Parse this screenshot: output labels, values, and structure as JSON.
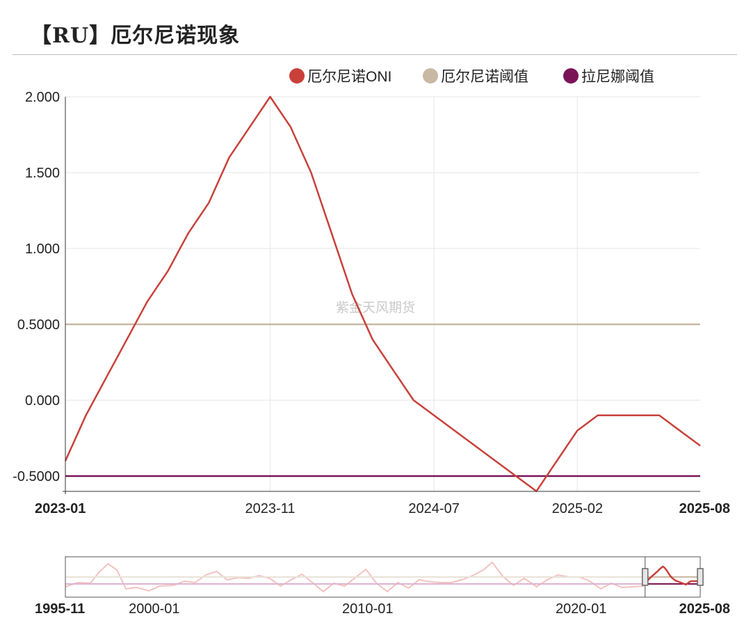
{
  "page": {
    "title": "【RU】厄尔尼诺现象"
  },
  "watermark": "紫金天风期货",
  "chart_data": {
    "type": "line",
    "title": "【RU】厄尔尼诺现象",
    "xlabel": "",
    "ylabel": "",
    "ylim": [
      -0.5,
      2.0
    ],
    "y_ticks": [
      "2.000",
      "1.500",
      "1.000",
      "0.5000",
      "0.000",
      "-0.5000"
    ],
    "y_tick_values": [
      2.0,
      1.5,
      1.0,
      0.5,
      0.0,
      -0.5
    ],
    "x_range": [
      "2023-01",
      "2025-08"
    ],
    "x_ticks": [
      {
        "label": "2023-01",
        "bold": true
      },
      {
        "label": "2023-11",
        "bold": false
      },
      {
        "label": "2024-07",
        "bold": false
      },
      {
        "label": "2025-02",
        "bold": false
      },
      {
        "label": "2025-08",
        "bold": true
      }
    ],
    "grid": true,
    "legend_position": "top-right",
    "legend": [
      {
        "name": "厄尔尼诺ONI",
        "color": "#c9403a"
      },
      {
        "name": "厄尔尼诺阈值",
        "color": "#c9b8a3"
      },
      {
        "name": "拉尼娜阈值",
        "color": "#7b1457"
      }
    ],
    "series": [
      {
        "name": "厄尔尼诺ONI",
        "color": "#c9403a",
        "points": [
          [
            "2023-01",
            -0.4
          ],
          [
            "2023-02",
            -0.1
          ],
          [
            "2023-03",
            0.15
          ],
          [
            "2023-04",
            0.4
          ],
          [
            "2023-05",
            0.65
          ],
          [
            "2023-06",
            0.85
          ],
          [
            "2023-07",
            1.1
          ],
          [
            "2023-08",
            1.3
          ],
          [
            "2023-09",
            1.6
          ],
          [
            "2023-10",
            1.8
          ],
          [
            "2023-11",
            2.0
          ],
          [
            "2023-12",
            1.8
          ],
          [
            "2024-01",
            1.5
          ],
          [
            "2024-02",
            1.1
          ],
          [
            "2024-03",
            0.7
          ],
          [
            "2024-04",
            0.4
          ],
          [
            "2024-05",
            0.2
          ],
          [
            "2024-06",
            0.0
          ],
          [
            "2024-07",
            -0.1
          ],
          [
            "2024-08",
            -0.2
          ],
          [
            "2024-09",
            -0.3
          ],
          [
            "2024-10",
            -0.4
          ],
          [
            "2024-11",
            -0.5
          ],
          [
            "2024-12",
            -0.6
          ],
          [
            "2025-01",
            -0.4
          ],
          [
            "2025-02",
            -0.2
          ],
          [
            "2025-03",
            -0.1
          ],
          [
            "2025-04",
            -0.1
          ],
          [
            "2025-05",
            -0.1
          ],
          [
            "2025-06",
            -0.1
          ],
          [
            "2025-07",
            -0.2
          ],
          [
            "2025-08",
            -0.3
          ]
        ]
      },
      {
        "name": "厄尔尼诺阈值",
        "color": "#c9b8a3",
        "constant": 0.5
      },
      {
        "name": "拉尼娜阈值",
        "color": "#7b1457",
        "constant": -0.5
      }
    ],
    "overview": {
      "x_range": [
        "1995-11",
        "2025-08"
      ],
      "x_ticks": [
        {
          "label": "1995-11",
          "bold": true
        },
        {
          "label": "2000-01",
          "bold": false
        },
        {
          "label": "2010-01",
          "bold": false
        },
        {
          "label": "2020-01",
          "bold": false
        },
        {
          "label": "2025-08",
          "bold": true
        }
      ],
      "selected_range": [
        "2023-01",
        "2025-08"
      ],
      "ylim": [
        -2.0,
        3.0
      ],
      "history": [
        [
          "1995-11",
          -0.9
        ],
        [
          "1996-06",
          -0.3
        ],
        [
          "1997-01",
          -0.4
        ],
        [
          "1997-06",
          1.2
        ],
        [
          "1997-11",
          2.4
        ],
        [
          "1998-04",
          1.5
        ],
        [
          "1998-09",
          -1.2
        ],
        [
          "1999-03",
          -1.0
        ],
        [
          "1999-10",
          -1.5
        ],
        [
          "2000-04",
          -0.8
        ],
        [
          "2000-12",
          -0.7
        ],
        [
          "2001-06",
          -0.1
        ],
        [
          "2001-12",
          -0.3
        ],
        [
          "2002-06",
          0.8
        ],
        [
          "2002-12",
          1.3
        ],
        [
          "2003-06",
          0.1
        ],
        [
          "2003-12",
          0.4
        ],
        [
          "2004-06",
          0.3
        ],
        [
          "2004-12",
          0.7
        ],
        [
          "2005-06",
          0.3
        ],
        [
          "2005-12",
          -0.8
        ],
        [
          "2006-06",
          0.1
        ],
        [
          "2006-12",
          0.9
        ],
        [
          "2007-06",
          -0.3
        ],
        [
          "2007-12",
          -1.6
        ],
        [
          "2008-06",
          -0.4
        ],
        [
          "2008-12",
          -0.8
        ],
        [
          "2009-06",
          0.4
        ],
        [
          "2009-12",
          1.6
        ],
        [
          "2010-06",
          -0.4
        ],
        [
          "2010-12",
          -1.6
        ],
        [
          "2011-06",
          -0.3
        ],
        [
          "2011-12",
          -1.1
        ],
        [
          "2012-06",
          0.1
        ],
        [
          "2012-12",
          -0.2
        ],
        [
          "2013-06",
          -0.3
        ],
        [
          "2013-12",
          -0.3
        ],
        [
          "2014-06",
          0.1
        ],
        [
          "2014-12",
          0.7
        ],
        [
          "2015-06",
          1.5
        ],
        [
          "2015-11",
          2.6
        ],
        [
          "2016-05",
          0.6
        ],
        [
          "2016-11",
          -0.7
        ],
        [
          "2017-05",
          0.3
        ],
        [
          "2017-12",
          -0.9
        ],
        [
          "2018-06",
          0.1
        ],
        [
          "2018-12",
          0.8
        ],
        [
          "2019-06",
          0.5
        ],
        [
          "2019-12",
          0.5
        ],
        [
          "2020-06",
          -0.1
        ],
        [
          "2020-12",
          -1.2
        ],
        [
          "2021-06",
          -0.4
        ],
        [
          "2021-12",
          -1.0
        ],
        [
          "2022-06",
          -0.9
        ],
        [
          "2022-12",
          -0.8
        ]
      ]
    }
  }
}
